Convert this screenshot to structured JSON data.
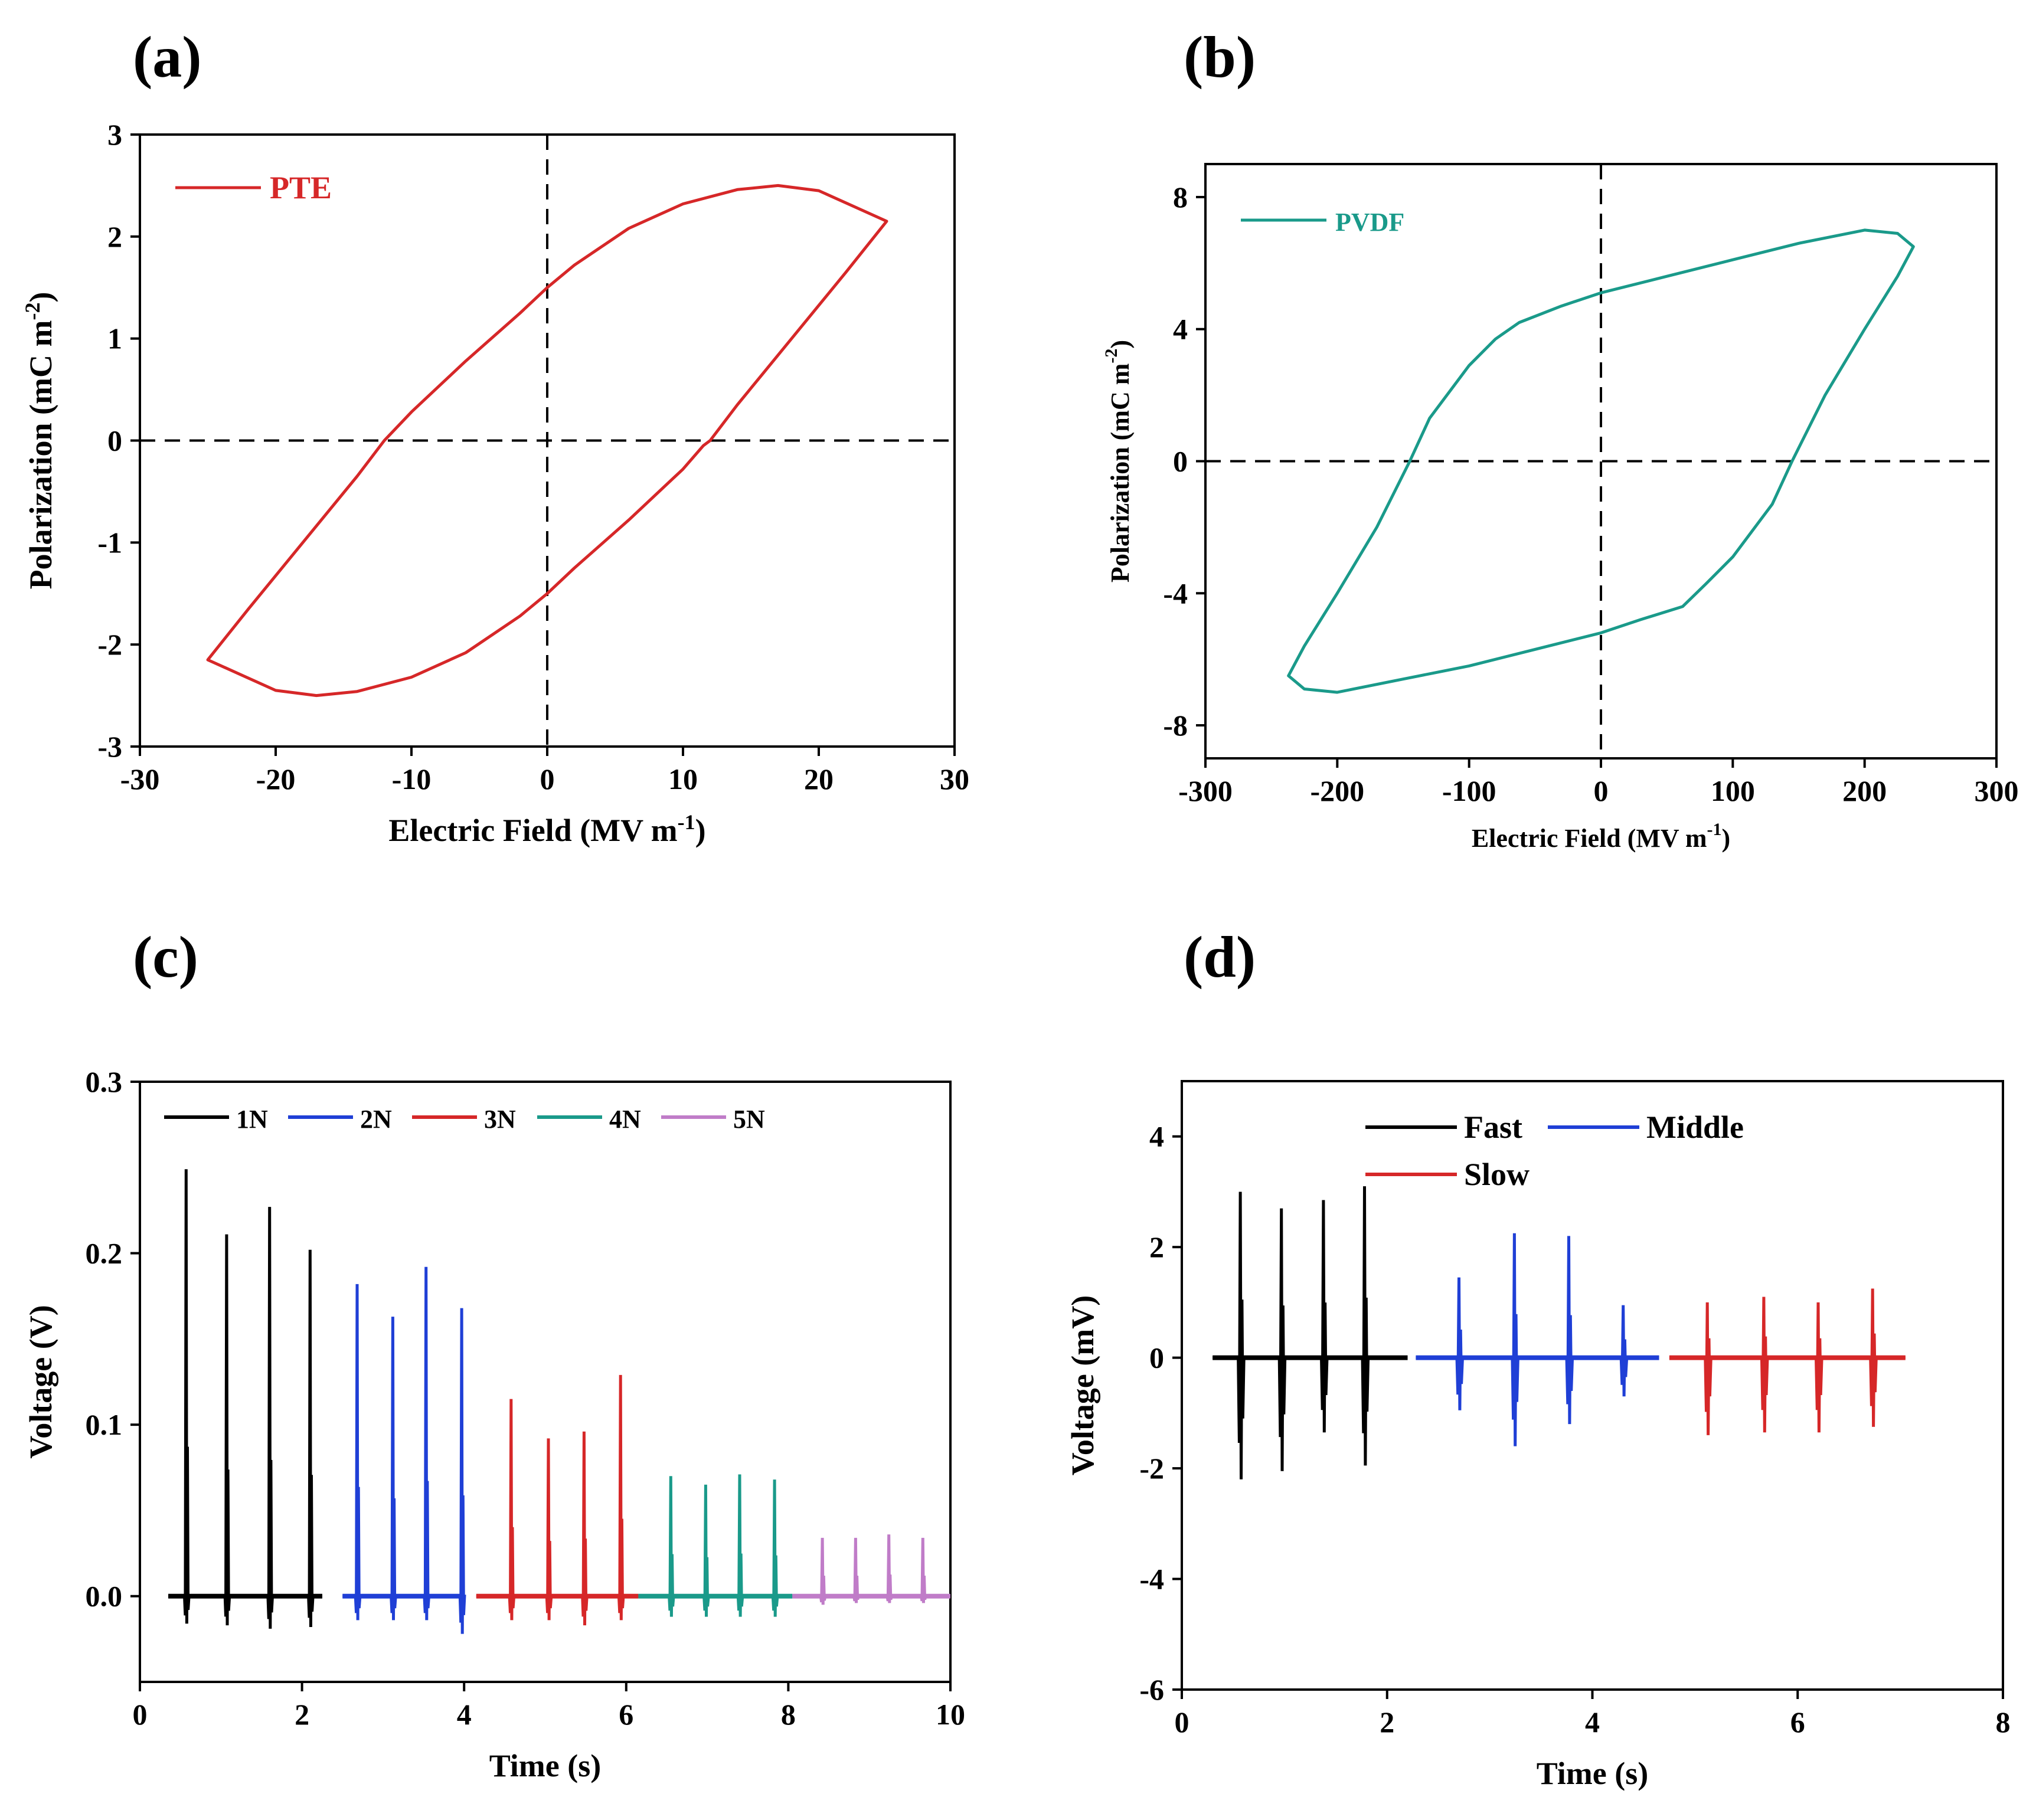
{
  "panel_labels": [
    "(a)",
    "(b)",
    "(c)",
    "(d)"
  ],
  "chart_data": [
    {
      "id": "a",
      "type": "line",
      "panel_label": "(a)",
      "xlabel": "Electric Field  (MV m",
      "xlabel_sup": "-1",
      "xlabel_end": ")",
      "ylabel": "Polarization  (mC m",
      "ylabel_sup": "-2",
      "ylabel_end": ")",
      "xlim": [
        -30,
        30
      ],
      "ylim": [
        -3,
        3
      ],
      "xticks": [
        -30,
        -20,
        -10,
        0,
        10,
        20,
        30
      ],
      "yticks": [
        -3,
        -2,
        -1,
        0,
        1,
        2,
        3
      ],
      "dashed_zero_lines": true,
      "legend_position": "top-left",
      "series": [
        {
          "name": "PTE",
          "color": "#d62728",
          "x": [
            -25,
            -22,
            -18,
            -14,
            -12,
            -10,
            -6,
            -2,
            0,
            2,
            6,
            10,
            14,
            17,
            20,
            25,
            22,
            18,
            14,
            12,
            11.5,
            10,
            6,
            2,
            0,
            -2,
            -6,
            -10,
            -14,
            -17,
            -20,
            -25
          ],
          "y": [
            -2.15,
            -1.65,
            -1.0,
            -0.35,
            0,
            0.28,
            0.78,
            1.25,
            1.5,
            1.72,
            2.08,
            2.32,
            2.46,
            2.5,
            2.45,
            2.15,
            1.65,
            1.0,
            0.35,
            0,
            -0.05,
            -0.28,
            -0.78,
            -1.25,
            -1.5,
            -1.72,
            -2.08,
            -2.32,
            -2.46,
            -2.5,
            -2.45,
            -2.15
          ]
        }
      ]
    },
    {
      "id": "b",
      "type": "line",
      "panel_label": "(b)",
      "xlabel": "Electric Field  (MV m",
      "xlabel_sup": "-1",
      "xlabel_end": ")",
      "ylabel": "Polarization  (mC m",
      "ylabel_sup": "-2",
      "ylabel_end": ")",
      "xlim": [
        -300,
        300
      ],
      "ylim": [
        -9,
        9
      ],
      "xticks": [
        -300,
        -200,
        -100,
        0,
        100,
        200,
        300
      ],
      "yticks": [
        -8,
        -4,
        0,
        4,
        8
      ],
      "dashed_zero_lines": true,
      "legend_position": "top-left",
      "series": [
        {
          "name": "PVDF",
          "color": "#1a9a8a",
          "x": [
            -237,
            -225,
            -200,
            -170,
            -145,
            -130,
            -100,
            -80,
            -62,
            -30,
            0,
            50,
            100,
            150,
            200,
            225,
            237,
            225,
            200,
            170,
            145,
            130,
            100,
            80,
            62,
            30,
            0,
            -50,
            -100,
            -150,
            -200,
            -225,
            -237
          ],
          "y": [
            -6.5,
            -5.6,
            -4.0,
            -2.0,
            0,
            1.3,
            2.9,
            3.7,
            4.2,
            4.7,
            5.1,
            5.6,
            6.1,
            6.6,
            7.0,
            6.9,
            6.5,
            5.6,
            4.0,
            2.0,
            0,
            -1.3,
            -2.9,
            -3.7,
            -4.4,
            -4.8,
            -5.2,
            -5.7,
            -6.2,
            -6.6,
            -7.0,
            -6.9,
            -6.5
          ]
        }
      ]
    },
    {
      "id": "c",
      "type": "line",
      "panel_label": "(c)",
      "xlabel": "Time  (s)",
      "ylabel": "Voltage  (V)",
      "xlim": [
        0,
        10
      ],
      "ylim": [
        -0.05,
        0.3
      ],
      "xticks": [
        0,
        2,
        4,
        6,
        8,
        10
      ],
      "ytick_labels": [
        "0.0",
        "0.1",
        "0.2",
        "0.3"
      ],
      "yticks": [
        0,
        0.1,
        0.2,
        0.3
      ],
      "legend_position": "top",
      "series": [
        {
          "name": "1N",
          "color": "#000000",
          "range": [
            0.35,
            2.25
          ],
          "baseline": 0.0,
          "peaks": [
            [
              0.57,
              0.249,
              -0.016
            ],
            [
              1.07,
              0.211,
              -0.017
            ],
            [
              1.6,
              0.227,
              -0.019
            ],
            [
              2.1,
              0.202,
              -0.018
            ]
          ]
        },
        {
          "name": "2N",
          "color": "#1f3fd6",
          "range": [
            2.5,
            4.0
          ],
          "baseline": 0.0,
          "peaks": [
            [
              2.68,
              0.182,
              -0.014
            ],
            [
              3.12,
              0.163,
              -0.014
            ],
            [
              3.53,
              0.192,
              -0.014
            ],
            [
              3.97,
              0.168,
              -0.022
            ]
          ]
        },
        {
          "name": "3N",
          "color": "#d62728",
          "range": [
            4.15,
            6.15
          ],
          "baseline": 0.0,
          "peaks": [
            [
              4.58,
              0.115,
              -0.014
            ],
            [
              5.04,
              0.092,
              -0.014
            ],
            [
              5.48,
              0.096,
              -0.017
            ],
            [
              5.93,
              0.129,
              -0.014
            ]
          ]
        },
        {
          "name": "4N",
          "color": "#1a9a8a",
          "range": [
            6.15,
            8.05
          ],
          "baseline": 0.0,
          "peaks": [
            [
              6.55,
              0.07,
              -0.012
            ],
            [
              6.98,
              0.065,
              -0.012
            ],
            [
              7.4,
              0.071,
              -0.012
            ],
            [
              7.83,
              0.068,
              -0.012
            ]
          ]
        },
        {
          "name": "5N",
          "color": "#c07cc8",
          "range": [
            8.05,
            10.0
          ],
          "baseline": 0.0,
          "peaks": [
            [
              8.42,
              0.034,
              -0.005
            ],
            [
              8.83,
              0.034,
              -0.004
            ],
            [
              9.24,
              0.036,
              -0.004
            ],
            [
              9.66,
              0.034,
              -0.004
            ]
          ]
        }
      ]
    },
    {
      "id": "d",
      "type": "line",
      "panel_label": "(d)",
      "xlabel": "Time (s)",
      "ylabel": "Voltage (mV)",
      "xlim": [
        0,
        8
      ],
      "ylim": [
        -6,
        5
      ],
      "xticks": [
        0,
        2,
        4,
        6,
        8
      ],
      "yticks": [
        -6,
        -4,
        -2,
        0,
        2,
        4
      ],
      "legend_position": "top",
      "series": [
        {
          "name": "Fast",
          "color": "#000000",
          "range": [
            0.3,
            2.2
          ],
          "baseline": 0.0,
          "peaks": [
            [
              0.57,
              3.0,
              -2.2
            ],
            [
              0.97,
              2.7,
              -2.05
            ],
            [
              1.38,
              2.85,
              -1.35
            ],
            [
              1.78,
              3.1,
              -1.95
            ]
          ]
        },
        {
          "name": "Middle",
          "color": "#1f3fd6",
          "range": [
            2.28,
            4.65
          ],
          "baseline": 0.0,
          "peaks": [
            [
              2.7,
              1.45,
              -0.95
            ],
            [
              3.24,
              2.25,
              -1.6
            ],
            [
              3.77,
              2.2,
              -1.2
            ],
            [
              4.3,
              0.95,
              -0.7
            ]
          ]
        },
        {
          "name": "Slow",
          "color": "#d62728",
          "range": [
            4.75,
            7.05
          ],
          "baseline": 0.0,
          "peaks": [
            [
              5.12,
              1.0,
              -1.4
            ],
            [
              5.67,
              1.1,
              -1.35
            ],
            [
              6.2,
              1.0,
              -1.35
            ],
            [
              6.73,
              1.25,
              -1.25
            ]
          ]
        }
      ]
    }
  ]
}
